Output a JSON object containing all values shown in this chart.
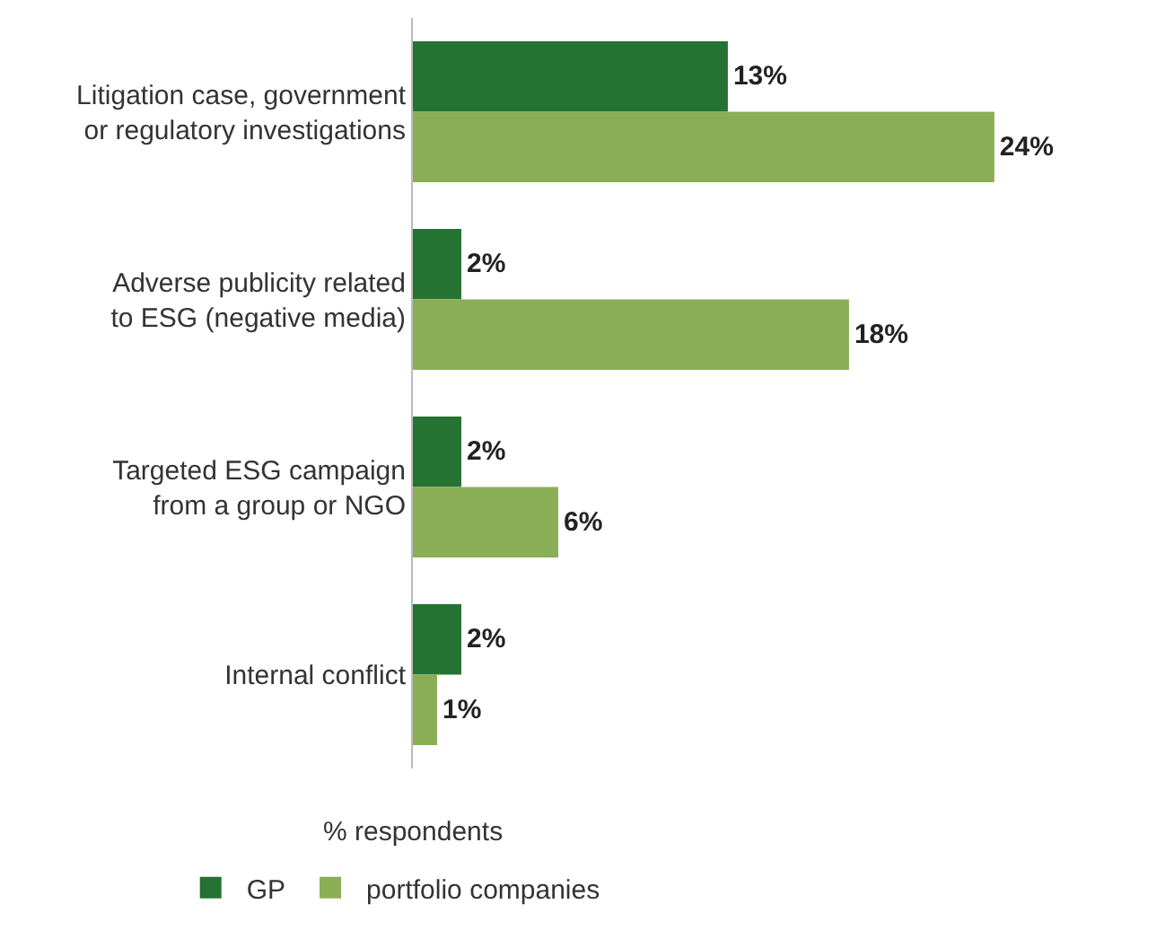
{
  "chart_data": {
    "type": "bar",
    "orientation": "horizontal",
    "categories": [
      "Litigation case, government\nor regulatory investigations",
      "Adverse publicity related\nto ESG (negative media)",
      "Targeted ESG campaign\nfrom a group or NGO",
      "Internal conflict"
    ],
    "series": [
      {
        "name": "GP",
        "color": "#267232",
        "values": [
          13,
          2,
          2,
          2
        ],
        "value_labels": [
          "13%",
          "2%",
          "2%",
          "2%"
        ]
      },
      {
        "name": "portfolio companies",
        "color": "#8aae56",
        "values": [
          24,
          18,
          6,
          1
        ],
        "value_labels": [
          "24%",
          "18%",
          "6%",
          "1%"
        ]
      }
    ],
    "xlabel": "% respondents",
    "legend": "bottom",
    "tick_labels": "y"
  }
}
